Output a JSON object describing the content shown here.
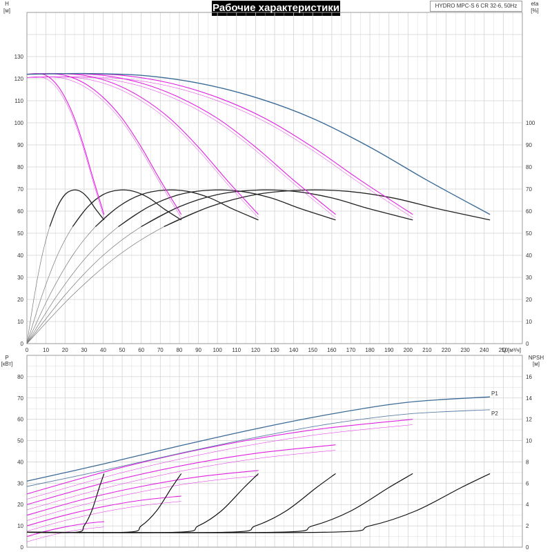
{
  "header": {
    "title": "Рабочие характеристики",
    "model": "HYDRO MPC-S 6 CR 32-6, 50Hz"
  },
  "colors": {
    "grid": "#d2d2d2",
    "frame": "#9a9a9a",
    "pump_curve": "#e020e0",
    "max_curve": "#3a6a96",
    "efficiency": "#222222",
    "efficiency_light": "#777777",
    "npsh": "#111111",
    "text": "#333333"
  },
  "chart_data": [
    {
      "type": "line",
      "name": "head-efficiency",
      "xlabel": "Q [м³/ч]",
      "ylabel": "H\n[м]",
      "y2label": "eta\n[%]",
      "xlim": [
        0,
        260
      ],
      "ylim": [
        0,
        150
      ],
      "y2lim": [
        0,
        150
      ],
      "x_ticks": [
        0,
        10,
        20,
        30,
        40,
        50,
        60,
        70,
        80,
        90,
        100,
        110,
        120,
        130,
        140,
        150,
        160,
        170,
        180,
        190,
        200,
        210,
        220,
        230,
        240,
        250
      ],
      "y_ticks": [
        0,
        10,
        20,
        30,
        40,
        50,
        60,
        70,
        80,
        90,
        100,
        110,
        120,
        130
      ],
      "y2_ticks": [
        0,
        10,
        20,
        30,
        40,
        50,
        60,
        70,
        80,
        90,
        100
      ],
      "grid": true,
      "head_series": [
        {
          "pumps": 1,
          "x": [
            0,
            5,
            10,
            15,
            20,
            25,
            30,
            35,
            40.5
          ],
          "y": [
            122,
            122.3,
            121.5,
            118,
            111.5,
            102,
            89,
            74,
            58.5
          ]
        },
        {
          "pumps": 2,
          "x": [
            0,
            10,
            20,
            30,
            40,
            50,
            60,
            70,
            81
          ],
          "y": [
            122,
            122.3,
            121.5,
            118,
            111.5,
            102,
            89,
            74,
            58.5
          ]
        },
        {
          "pumps": 3,
          "x": [
            0,
            15,
            30,
            45,
            60,
            75,
            90,
            105,
            121.5
          ],
          "y": [
            122,
            122.3,
            121.5,
            118,
            111.5,
            102,
            89,
            74,
            58.5
          ]
        },
        {
          "pumps": 4,
          "x": [
            0,
            20,
            40,
            60,
            80,
            100,
            120,
            140,
            162
          ],
          "y": [
            122,
            122.3,
            121.5,
            118,
            111.5,
            102,
            89,
            74,
            58.5
          ]
        },
        {
          "pumps": 5,
          "x": [
            0,
            25,
            50,
            75,
            100,
            125,
            150,
            175,
            202.5
          ],
          "y": [
            122,
            122.3,
            121.5,
            118,
            111.5,
            102,
            89,
            74,
            58.5
          ]
        },
        {
          "pumps": 6,
          "x": [
            0,
            30,
            60,
            90,
            120,
            150,
            180,
            210,
            243
          ],
          "y": [
            122,
            122.3,
            121.5,
            118,
            111.5,
            102,
            89,
            74,
            58.5
          ]
        }
      ],
      "efficiency_series": [
        {
          "pumps": 1,
          "x": [
            0,
            4,
            8,
            12,
            16,
            20,
            24,
            28,
            32,
            36,
            40.5
          ],
          "y": [
            0,
            22,
            40,
            53,
            62,
            67.5,
            69.5,
            69,
            66,
            61,
            56
          ]
        },
        {
          "pumps": 2,
          "x": [
            0,
            8,
            16,
            24,
            32,
            40,
            48,
            56,
            64,
            72,
            81
          ],
          "y": [
            0,
            22,
            40,
            53,
            62,
            67.5,
            69.5,
            69,
            66,
            61,
            56
          ]
        },
        {
          "pumps": 3,
          "x": [
            0,
            12,
            24,
            36,
            48,
            60,
            72,
            84,
            96,
            108,
            121.5
          ],
          "y": [
            0,
            22,
            40,
            53,
            62,
            67.5,
            69.5,
            69,
            66,
            61,
            56
          ]
        },
        {
          "pumps": 4,
          "x": [
            0,
            16,
            32,
            48,
            64,
            80,
            96,
            112,
            128,
            144,
            162
          ],
          "y": [
            0,
            22,
            40,
            53,
            62,
            67.5,
            69.5,
            69,
            66,
            61,
            56
          ]
        },
        {
          "pumps": 5,
          "x": [
            0,
            20,
            40,
            60,
            80,
            100,
            120,
            140,
            160,
            180,
            202.5
          ],
          "y": [
            0,
            22,
            40,
            53,
            62,
            67.5,
            69.5,
            69,
            66,
            61,
            56
          ]
        },
        {
          "pumps": 6,
          "x": [
            0,
            24,
            48,
            72,
            96,
            120,
            144,
            168,
            192,
            216,
            243
          ],
          "y": [
            0,
            22,
            40,
            53,
            62,
            67.5,
            69.5,
            69,
            66,
            61,
            56
          ]
        }
      ]
    },
    {
      "type": "line",
      "name": "power-npsh",
      "xlim": [
        0,
        260
      ],
      "ylim": [
        0,
        90
      ],
      "y2lim": [
        0,
        18
      ],
      "ylabel": "P\n[кВт]",
      "y2label": "NPSH\n[м]",
      "y_ticks": [
        0,
        10,
        20,
        30,
        40,
        50,
        60,
        70,
        80
      ],
      "y2_ticks": [
        0,
        2,
        4,
        6,
        8,
        10,
        12,
        14,
        16
      ],
      "grid": true,
      "power_series": [
        {
          "name": "P1",
          "x": [
            0,
            40,
            80,
            120,
            160,
            200,
            243
          ],
          "y": [
            31,
            39,
            47.5,
            55.5,
            62.5,
            68,
            70.5
          ]
        },
        {
          "name": "P2",
          "x": [
            0,
            40,
            80,
            120,
            160,
            200,
            243
          ],
          "y": [
            28.5,
            36,
            44,
            51.5,
            58,
            62.5,
            64.5
          ]
        }
      ],
      "pump_power_series": [
        {
          "pumps": 1,
          "x": [
            0,
            10,
            20,
            30,
            40.5
          ],
          "y": [
            5,
            7.5,
            9.5,
            11,
            12
          ]
        },
        {
          "pumps": 2,
          "x": [
            0,
            20,
            40,
            60,
            81
          ],
          "y": [
            10,
            15,
            19,
            22,
            24
          ]
        },
        {
          "pumps": 3,
          "x": [
            0,
            30,
            60,
            90,
            121.5
          ],
          "y": [
            15,
            22.5,
            28.5,
            33,
            36
          ]
        },
        {
          "pumps": 4,
          "x": [
            0,
            40,
            80,
            120,
            162
          ],
          "y": [
            20,
            30,
            38,
            44,
            48
          ]
        },
        {
          "pumps": 5,
          "x": [
            0,
            50,
            100,
            150,
            202.5
          ],
          "y": [
            25,
            37.5,
            47.5,
            55,
            60
          ]
        }
      ],
      "npsh_series": [
        {
          "pumps": 1,
          "x": [
            0,
            26,
            30,
            34,
            38,
            40.5
          ],
          "y": [
            1.4,
            1.4,
            2.0,
            3.4,
            5.6,
            6.9
          ]
        },
        {
          "pumps": 2,
          "x": [
            0,
            52,
            60,
            68,
            76,
            81
          ],
          "y": [
            1.4,
            1.4,
            2.0,
            3.4,
            5.6,
            6.9
          ]
        },
        {
          "pumps": 3,
          "x": [
            0,
            78,
            90,
            102,
            114,
            121.5
          ],
          "y": [
            1.4,
            1.4,
            2.0,
            3.4,
            5.6,
            6.9
          ]
        },
        {
          "pumps": 4,
          "x": [
            0,
            104,
            120,
            136,
            152,
            162
          ],
          "y": [
            1.4,
            1.4,
            2.0,
            3.4,
            5.6,
            6.9
          ]
        },
        {
          "pumps": 5,
          "x": [
            0,
            130,
            150,
            170,
            190,
            202.5
          ],
          "y": [
            1.4,
            1.4,
            2.0,
            3.4,
            5.6,
            6.9
          ]
        },
        {
          "pumps": 6,
          "x": [
            0,
            156,
            180,
            204,
            228,
            243
          ],
          "y": [
            1.4,
            1.4,
            2.0,
            3.4,
            5.6,
            6.9
          ]
        }
      ]
    }
  ]
}
